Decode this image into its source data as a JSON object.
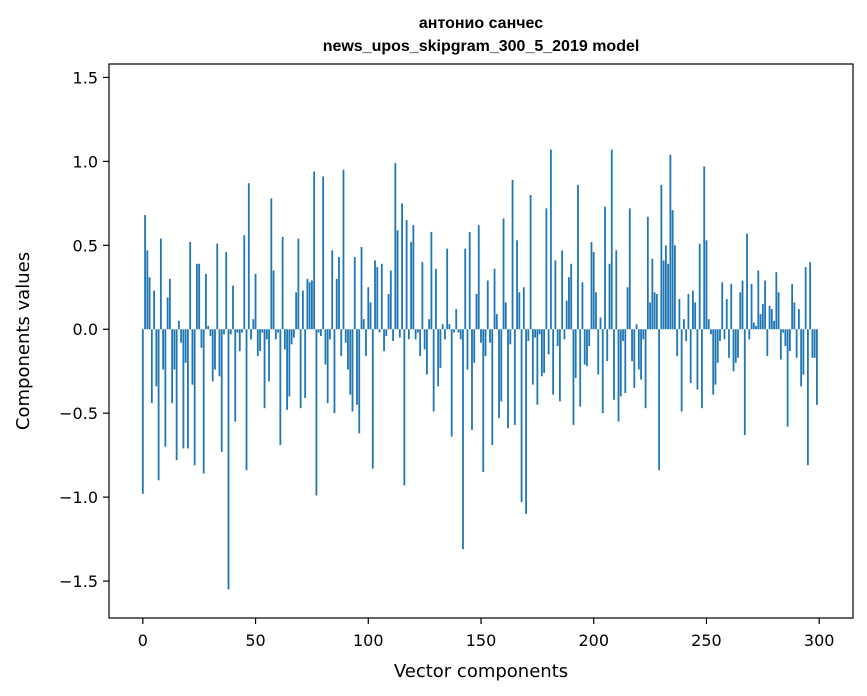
{
  "chart_data": {
    "type": "bar",
    "title": "антонио санчес",
    "subtitle": "news_upos_skipgram_300_5_2019 model",
    "xlabel": "Vector components",
    "ylabel": "Components values",
    "xlim": [
      -15,
      315
    ],
    "ylim": [
      -1.72,
      1.58
    ],
    "xticks": [
      0,
      50,
      100,
      150,
      200,
      250,
      300
    ],
    "yticks": [
      -1.5,
      -1.0,
      -0.5,
      0.0,
      0.5,
      1.0,
      1.5
    ],
    "ytick_labels": [
      "−1.5",
      "−1.0",
      "−0.5",
      "0.0",
      "0.5",
      "1.0",
      "1.5"
    ],
    "grid": false,
    "bar_color": "#1f77b4",
    "x": [
      0,
      1,
      2,
      3,
      4,
      5,
      6,
      7,
      8,
      9,
      10,
      11,
      12,
      13,
      14,
      15,
      16,
      17,
      18,
      19,
      20,
      21,
      22,
      23,
      24,
      25,
      26,
      27,
      28,
      29,
      30,
      31,
      32,
      33,
      34,
      35,
      36,
      37,
      38,
      39,
      40,
      41,
      42,
      43,
      44,
      45,
      46,
      47,
      48,
      49,
      50,
      51,
      52,
      53,
      54,
      55,
      56,
      57,
      58,
      59,
      60,
      61,
      62,
      63,
      64,
      65,
      66,
      67,
      68,
      69,
      70,
      71,
      72,
      73,
      74,
      75,
      76,
      77,
      78,
      79,
      80,
      81,
      82,
      83,
      84,
      85,
      86,
      87,
      88,
      89,
      90,
      91,
      92,
      93,
      94,
      95,
      96,
      97,
      98,
      99,
      100,
      101,
      102,
      103,
      104,
      105,
      106,
      107,
      108,
      109,
      110,
      111,
      112,
      113,
      114,
      115,
      116,
      117,
      118,
      119,
      120,
      121,
      122,
      123,
      124,
      125,
      126,
      127,
      128,
      129,
      130,
      131,
      132,
      133,
      134,
      135,
      136,
      137,
      138,
      139,
      140,
      141,
      142,
      143,
      144,
      145,
      146,
      147,
      148,
      149,
      150,
      151,
      152,
      153,
      154,
      155,
      156,
      157,
      158,
      159,
      160,
      161,
      162,
      163,
      164,
      165,
      166,
      167,
      168,
      169,
      170,
      171,
      172,
      173,
      174,
      175,
      176,
      177,
      178,
      179,
      180,
      181,
      182,
      183,
      184,
      185,
      186,
      187,
      188,
      189,
      190,
      191,
      192,
      193,
      194,
      195,
      196,
      197,
      198,
      199,
      200,
      201,
      202,
      203,
      204,
      205,
      206,
      207,
      208,
      209,
      210,
      211,
      212,
      213,
      214,
      215,
      216,
      217,
      218,
      219,
      220,
      221,
      222,
      223,
      224,
      225,
      226,
      227,
      228,
      229,
      230,
      231,
      232,
      233,
      234,
      235,
      236,
      237,
      238,
      239,
      240,
      241,
      242,
      243,
      244,
      245,
      246,
      247,
      248,
      249,
      250,
      251,
      252,
      253,
      254,
      255,
      256,
      257,
      258,
      259,
      260,
      261,
      262,
      263,
      264,
      265,
      266,
      267,
      268,
      269,
      270,
      271,
      272,
      273,
      274,
      275,
      276,
      277,
      278,
      279,
      280,
      281,
      282,
      283,
      284,
      285,
      286,
      287,
      288,
      289,
      290,
      291,
      292,
      293,
      294,
      295,
      296,
      297,
      298,
      299
    ],
    "values": [
      -0.98,
      0.68,
      0.47,
      0.31,
      -0.44,
      0.23,
      -0.34,
      -0.9,
      0.54,
      -0.24,
      -0.7,
      0.19,
      0.3,
      -0.44,
      -0.24,
      -0.78,
      0.05,
      -0.08,
      -0.71,
      -0.2,
      -0.71,
      0.52,
      -0.33,
      -0.81,
      0.39,
      0.39,
      -0.11,
      -0.86,
      0.33,
      0.02,
      -0.04,
      -0.31,
      -0.24,
      0.51,
      -0.28,
      -0.73,
      -0.03,
      0.46,
      -1.55,
      -0.03,
      0.26,
      -0.55,
      -0.02,
      -0.13,
      -0.02,
      0.56,
      -0.84,
      0.87,
      -0.06,
      0.06,
      0.33,
      -0.16,
      -0.13,
      -0.02,
      -0.47,
      -0.06,
      -0.31,
      0.78,
      0.35,
      -0.06,
      -0.02,
      -0.69,
      0.55,
      -0.12,
      -0.48,
      -0.4,
      -0.09,
      -0.05,
      0.22,
      0.54,
      -0.47,
      0.23,
      -0.41,
      0.3,
      0.28,
      0.29,
      0.94,
      -0.99,
      -0.02,
      -0.04,
      0.91,
      -0.21,
      -0.44,
      -0.06,
      0.47,
      -0.5,
      0.3,
      0.43,
      -0.16,
      0.95,
      -0.08,
      -0.24,
      -0.39,
      -0.49,
      0.43,
      -0.45,
      -0.62,
      0.49,
      0.06,
      -0.16,
      0.25,
      0.16,
      -0.83,
      0.41,
      0.37,
      -0.02,
      0.39,
      -0.13,
      -0.04,
      0.21,
      0.35,
      -0.07,
      0.99,
      0.59,
      -0.05,
      0.75,
      -0.93,
      0.65,
      -0.06,
      0.52,
      0.62,
      -0.06,
      -0.02,
      -0.16,
      0.4,
      -0.12,
      -0.27,
      0.06,
      0.58,
      -0.49,
      0.36,
      -0.34,
      -0.23,
      0.03,
      -0.06,
      0.48,
      0.03,
      -0.64,
      -0.02,
      0.12,
      -0.02,
      -0.06,
      -1.31,
      0.48,
      -0.24,
      0.58,
      -0.6,
      -0.2,
      0.21,
      0.62,
      -0.08,
      -0.85,
      -0.16,
      0.29,
      -0.08,
      -0.69,
      0.36,
      0.09,
      -0.53,
      -0.43,
      0.66,
      0.16,
      -0.59,
      -0.09,
      0.89,
      -0.57,
      0.53,
      0.22,
      -1.03,
      0.25,
      -1.1,
      -0.07,
      0.8,
      -0.33,
      -0.05,
      -0.45,
      -0.03,
      -0.28,
      -0.26,
      0.72,
      -0.15,
      1.07,
      -0.39,
      0.41,
      -0.1,
      -0.43,
      0.47,
      -0.06,
      0.17,
      0.31,
      0.39,
      -0.57,
      -0.29,
      0.86,
      -0.46,
      0.28,
      -0.21,
      -0.22,
      -0.1,
      0.52,
      0.46,
      0.22,
      -0.27,
      0.07,
      -0.5,
      0.73,
      -0.19,
      0.39,
      1.07,
      -0.42,
      0.47,
      -0.55,
      -0.4,
      -0.07,
      -0.38,
      0.25,
      0.72,
      -0.19,
      -0.35,
      0.03,
      -0.24,
      -0.3,
      -0.06,
      -0.47,
      0.67,
      0.16,
      0.42,
      0.22,
      0.21,
      -0.84,
      0.86,
      0.41,
      0.5,
      0.39,
      1.04,
      0.71,
      0.5,
      -0.16,
      0.18,
      -0.49,
      0.06,
      -0.07,
      0.21,
      -0.32,
      0.23,
      0.16,
      -0.36,
      0.51,
      -0.47,
      0.97,
      0.53,
      0.06,
      -0.03,
      -0.39,
      -0.33,
      -0.2,
      -0.07,
      0.28,
      -0.06,
      0.18,
      -0.17,
      0.27,
      -0.25,
      -0.2,
      -0.17,
      0.22,
      0.29,
      -0.63,
      0.57,
      -0.06,
      0.27,
      0.04,
      0.02,
      0.35,
      0.09,
      0.15,
      0.29,
      -0.16,
      0.14,
      0.12,
      0.05,
      0.34,
      0.22,
      -0.18,
      -0.02,
      -0.1,
      -0.58,
      -0.13,
      0.27,
      0.16,
      -0.17,
      0.12,
      -0.34,
      -0.27,
      0.37,
      -0.81,
      0.4,
      -0.17,
      -0.17,
      -0.45
    ]
  }
}
